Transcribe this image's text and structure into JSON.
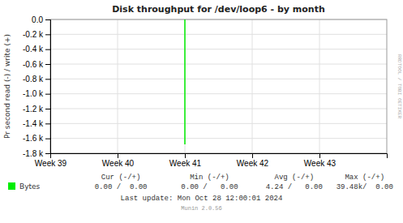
{
  "chart_data": {
    "type": "line",
    "title": "Disk throughput for /dev/loop6 - by month",
    "y_label": "Pr second read (-) / write (+)",
    "x": [
      336,
      336
    ],
    "series": [
      {
        "name": "Bytes",
        "color": "#00ee00",
        "values": [
          0,
          -1680
        ]
      }
    ],
    "xlim": [
      0,
      840
    ],
    "xticks": [
      {
        "value": 0,
        "label": "Week 39"
      },
      {
        "value": 168,
        "label": "Week 40"
      },
      {
        "value": 336,
        "label": "Week 41"
      },
      {
        "value": 504,
        "label": "Week 42"
      },
      {
        "value": 672,
        "label": "Week 43"
      }
    ],
    "ylim": [
      -1800,
      0
    ],
    "yticks": [
      {
        "value": 0,
        "label": "0.0"
      },
      {
        "value": -200,
        "label": "-0.2 k"
      },
      {
        "value": -400,
        "label": "-0.4 k"
      },
      {
        "value": -600,
        "label": "-0.6 k"
      },
      {
        "value": -800,
        "label": "-0.8 k"
      },
      {
        "value": -1000,
        "label": "-1.0 k"
      },
      {
        "value": -1200,
        "label": "-1.2 k"
      },
      {
        "value": -1400,
        "label": "-1.4 k"
      },
      {
        "value": -1600,
        "label": "-1.6 k"
      },
      {
        "value": -1800,
        "label": "-1.8 k"
      }
    ],
    "grid": true,
    "annotations": [
      "Cur (-/+)",
      "0.00 /  0.00",
      "Min (-/+)",
      "0.00 /   0.00",
      "Avg (-/+)",
      "4.24 /   0.00",
      "Max (-/+)",
      "39.48k/  0.00",
      "Last update: Mon Oct 28 12:00:01 2024",
      "Munin 2.0.56",
      "RRDTOOL / TOBI OETIKER"
    ]
  }
}
